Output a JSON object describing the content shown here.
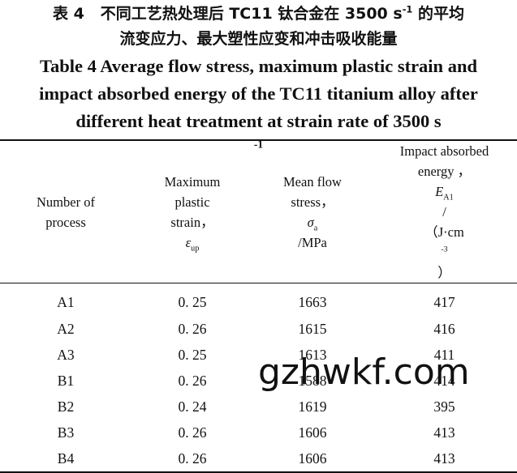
{
  "caption_cn": {
    "line1_prefix": "表 4",
    "line1_text_a": "不同工艺热处理后 TC11 钛合金在 3500 s",
    "line1_sup": "-1",
    "line1_text_b": " 的平均",
    "line2": "流变应力、最大塑性应变和冲击吸收能量"
  },
  "caption_en": {
    "line1": "Table 4   Average flow stress, maximum plastic strain and",
    "line2": "impact absorbed energy of the TC11 titanium alloy after",
    "line3_text": "different heat treatment at strain rate of 3500 s",
    "line3_sup": "-1"
  },
  "table": {
    "headers": {
      "col1": [
        "Number of",
        "process"
      ],
      "col2": [
        "Maximum",
        "plastic",
        "strain，"
      ],
      "col2_symbol": "ε",
      "col2_sub": "up",
      "col3": [
        "Mean flow",
        "stress，"
      ],
      "col3_symbol": "σ",
      "col3_sub": "a",
      "col3_unit": "/MPa",
      "col4": [
        "Impact absorbed",
        "energy ，"
      ],
      "col4_symbol": "E",
      "col4_sub": "A1",
      "col4_unit_a": "/",
      "col4_unit_b": "（J·cm",
      "col4_unit_sup": "-3",
      "col4_unit_c": "）"
    },
    "rows": [
      [
        "A1",
        "0. 25",
        "1663",
        "417"
      ],
      [
        "A2",
        "0. 26",
        "1615",
        "416"
      ],
      [
        "A3",
        "0. 25",
        "1613",
        "411"
      ],
      [
        "B1",
        "0. 26",
        "1588",
        "414"
      ],
      [
        "B2",
        "0. 24",
        "1619",
        "395"
      ],
      [
        "B3",
        "0. 26",
        "1606",
        "413"
      ],
      [
        "B4",
        "0. 26",
        "1606",
        "413"
      ]
    ]
  },
  "watermark": "gzhwkf.com"
}
